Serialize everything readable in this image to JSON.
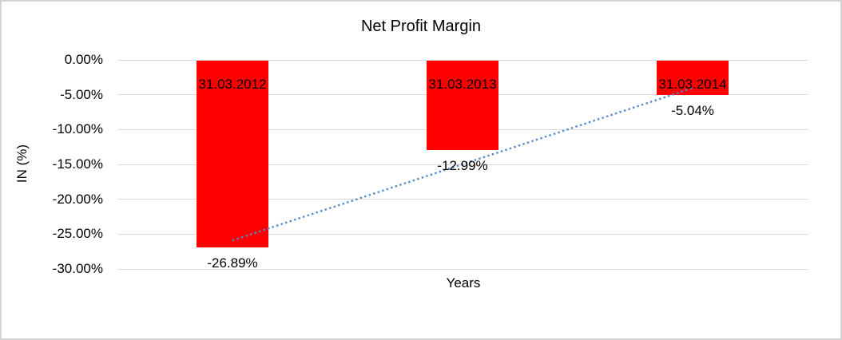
{
  "chart_data": {
    "type": "bar",
    "title": "Net Profit Margin",
    "xlabel": "Years",
    "ylabel": "IN (%)",
    "categories": [
      "31.03.2012",
      "31.03.2013",
      "31.03.2014"
    ],
    "values": [
      -26.89,
      -12.99,
      -5.04
    ],
    "data_labels": [
      "-26.89%",
      "-12.99%",
      "-5.04%"
    ],
    "y_tick_values": [
      0,
      -5,
      -10,
      -15,
      -20,
      -25,
      -30
    ],
    "y_tick_labels": [
      "0.00%",
      "-5.00%",
      "-10.00%",
      "-15.00%",
      "-20.00%",
      "-25.00%",
      "-30.00%"
    ],
    "ylim": [
      -30,
      0
    ],
    "grid": true,
    "legend": false,
    "bar_color": "#ff0000",
    "gridline_color": "#d9d9d9",
    "trendline": {
      "type": "linear",
      "style": "dotted",
      "color": "#5489ce"
    }
  }
}
